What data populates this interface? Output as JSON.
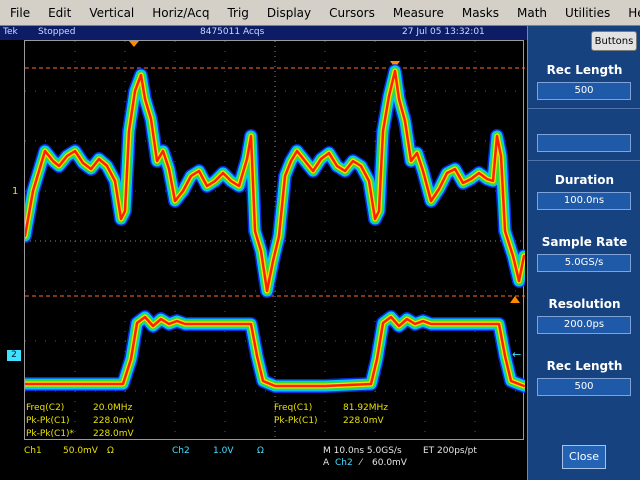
{
  "menu": [
    "File",
    "Edit",
    "Vertical",
    "Horiz/Acq",
    "Trig",
    "Display",
    "Cursors",
    "Measure",
    "Masks",
    "Math",
    "Utilities",
    "Help"
  ],
  "status": {
    "brand": "Tek",
    "state": "Stopped",
    "acqs": "8475011 Acqs",
    "datetime": "27 Jul 05 13:32:01"
  },
  "markers": {
    "ch1": "1",
    "ch2": "2"
  },
  "readouts": {
    "left": [
      {
        "label": "Freq(C2)",
        "value": "20.0MHz"
      },
      {
        "label": "Pk-Pk(C1)",
        "value": "228.0mV"
      },
      {
        "label": "Pk-Pk(C1)*",
        "value": "228.0mV"
      }
    ],
    "right": [
      {
        "label": "Freq(C1)",
        "value": "81.92MHz"
      },
      {
        "label": "Pk-Pk(C1)",
        "value": "228.0mV"
      }
    ]
  },
  "channels": {
    "ch1": {
      "name": "Ch1",
      "scale": "50.0mV",
      "unit": "Ω"
    },
    "ch2": {
      "name": "Ch2",
      "scale": "1.0V",
      "unit": "Ω"
    }
  },
  "timebase": {
    "line1": "M 10.0ns 5.0GS/s",
    "et": "ET 200ps/pt",
    "trig_a": "A",
    "trig_src": "Ch2",
    "trig_slope": "⁄",
    "trig_level": "60.0mV"
  },
  "panel": {
    "buttons_label": "Buttons",
    "rec_length_title": "Rec Length",
    "rec_length_value": "500",
    "duration_title": "Duration",
    "duration_value": "100.0ns",
    "sample_rate_title": "Sample Rate",
    "sample_rate_value": "5.0GS/s",
    "resolution_title": "Resolution",
    "resolution_value": "200.0ps",
    "rec_length2_title": "Rec Length",
    "rec_length2_value": "500",
    "close_label": "Close"
  },
  "colors": {
    "ch1": "#e8e000",
    "ch2": "#40e0ff",
    "waveform_hot": "#ff2000",
    "panel_bg": "#16437f",
    "trigger_marker": "#ff8a00"
  }
}
